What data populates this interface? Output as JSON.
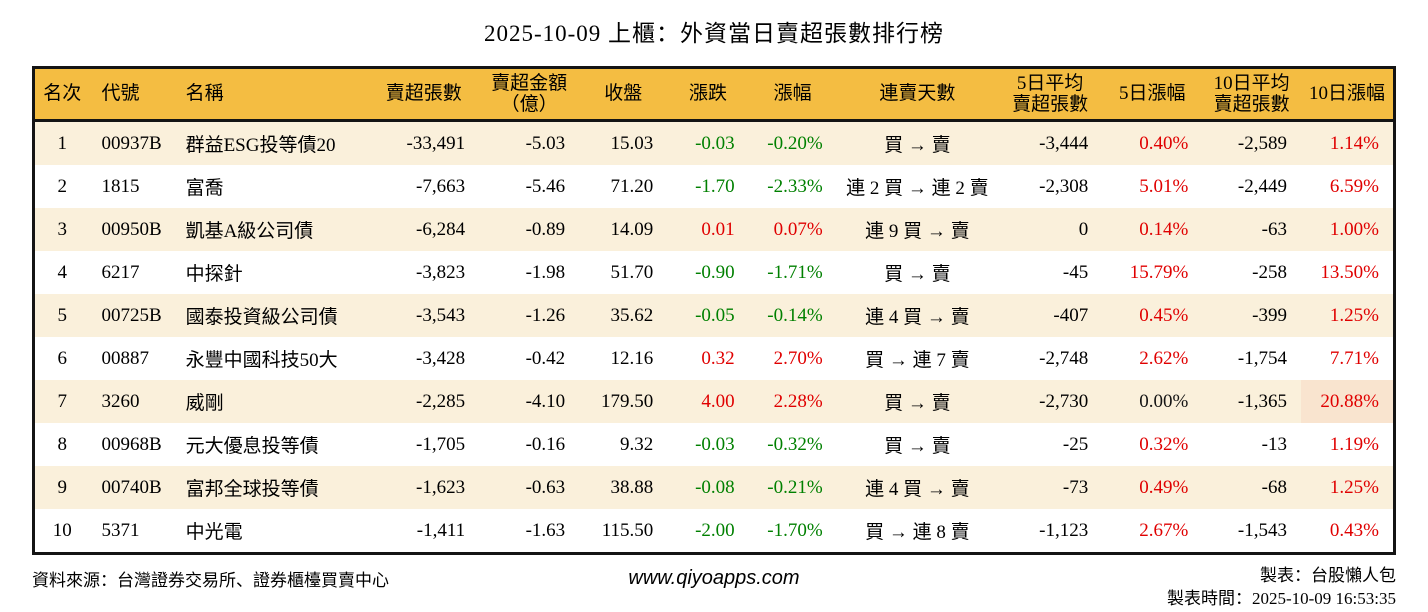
{
  "title": "2025-10-09 上櫃：外資當日賣超張數排行榜",
  "colors": {
    "header_bg": "#F4BD42",
    "row_band": "#FAF0DB",
    "up_red": "#E00000",
    "down_green": "#008000",
    "highlight": "#F9E4CF",
    "border": "#141414"
  },
  "footer": {
    "source": "資料來源：台灣證券交易所、證券櫃檯買賣中心",
    "website": "www.qiyoapps.com",
    "maker": "製表：台股懶人包",
    "generated_at": "製表時間：2025-10-09 16:53:35"
  },
  "chart_data": {
    "type": "table",
    "title": "2025-10-09 上櫃：外資當日賣超張數排行榜",
    "columns": [
      {
        "key": "rank",
        "label": "名次",
        "align": "center"
      },
      {
        "key": "code",
        "label": "代號",
        "align": "left"
      },
      {
        "key": "name",
        "label": "名稱",
        "align": "left"
      },
      {
        "key": "sell_volume",
        "label": "賣超張數",
        "align": "right"
      },
      {
        "key": "sell_amount",
        "label": "賣超金額\n（億）",
        "align": "right"
      },
      {
        "key": "close",
        "label": "收盤",
        "align": "right"
      },
      {
        "key": "change",
        "label": "漲跌",
        "align": "right"
      },
      {
        "key": "change_pct",
        "label": "漲幅",
        "align": "right"
      },
      {
        "key": "streak",
        "label": "連賣天數",
        "align": "center"
      },
      {
        "key": "avg5",
        "label": "5日平均\n賣超張數",
        "align": "right"
      },
      {
        "key": "pct5",
        "label": "5日漲幅",
        "align": "right"
      },
      {
        "key": "avg10",
        "label": "10日平均\n賣超張數",
        "align": "right"
      },
      {
        "key": "pct10",
        "label": "10日漲幅",
        "align": "right"
      }
    ],
    "rows": [
      {
        "rank": "1",
        "code": "00937B",
        "name": "群益ESG投等債20",
        "sell_volume": "-33,491",
        "sell_amount": "-5.03",
        "close": "15.03",
        "change": "-0.03",
        "change_pct": "-0.20%",
        "streak": "買 → 賣",
        "avg5": "-3,444",
        "pct5": "0.40%",
        "avg10": "-2,589",
        "pct10": "1.14%",
        "dir": {
          "change": "down",
          "change_pct": "down",
          "pct5": "up",
          "pct10": "up"
        }
      },
      {
        "rank": "2",
        "code": "1815",
        "name": "富喬",
        "sell_volume": "-7,663",
        "sell_amount": "-5.46",
        "close": "71.20",
        "change": "-1.70",
        "change_pct": "-2.33%",
        "streak": "連 2 買 → 連 2 賣",
        "avg5": "-2,308",
        "pct5": "5.01%",
        "avg10": "-2,449",
        "pct10": "6.59%",
        "dir": {
          "change": "down",
          "change_pct": "down",
          "pct5": "up",
          "pct10": "up"
        }
      },
      {
        "rank": "3",
        "code": "00950B",
        "name": "凱基A級公司債",
        "sell_volume": "-6,284",
        "sell_amount": "-0.89",
        "close": "14.09",
        "change": "0.01",
        "change_pct": "0.07%",
        "streak": "連 9 買 → 賣",
        "avg5": "0",
        "pct5": "0.14%",
        "avg10": "-63",
        "pct10": "1.00%",
        "dir": {
          "change": "up",
          "change_pct": "up",
          "pct5": "up",
          "pct10": "up"
        }
      },
      {
        "rank": "4",
        "code": "6217",
        "name": "中探針",
        "sell_volume": "-3,823",
        "sell_amount": "-1.98",
        "close": "51.70",
        "change": "-0.90",
        "change_pct": "-1.71%",
        "streak": "買 → 賣",
        "avg5": "-45",
        "pct5": "15.79%",
        "avg10": "-258",
        "pct10": "13.50%",
        "dir": {
          "change": "down",
          "change_pct": "down",
          "pct5": "up",
          "pct10": "up"
        }
      },
      {
        "rank": "5",
        "code": "00725B",
        "name": "國泰投資級公司債",
        "sell_volume": "-3,543",
        "sell_amount": "-1.26",
        "close": "35.62",
        "change": "-0.05",
        "change_pct": "-0.14%",
        "streak": "連 4 買 → 賣",
        "avg5": "-407",
        "pct5": "0.45%",
        "avg10": "-399",
        "pct10": "1.25%",
        "dir": {
          "change": "down",
          "change_pct": "down",
          "pct5": "up",
          "pct10": "up"
        }
      },
      {
        "rank": "6",
        "code": "00887",
        "name": "永豐中國科技50大",
        "sell_volume": "-3,428",
        "sell_amount": "-0.42",
        "close": "12.16",
        "change": "0.32",
        "change_pct": "2.70%",
        "streak": "買 → 連 7 賣",
        "avg5": "-2,748",
        "pct5": "2.62%",
        "avg10": "-1,754",
        "pct10": "7.71%",
        "dir": {
          "change": "up",
          "change_pct": "up",
          "pct5": "up",
          "pct10": "up"
        }
      },
      {
        "rank": "7",
        "code": "3260",
        "name": "威剛",
        "sell_volume": "-2,285",
        "sell_amount": "-4.10",
        "close": "179.50",
        "change": "4.00",
        "change_pct": "2.28%",
        "streak": "買 → 賣",
        "avg5": "-2,730",
        "pct5": "0.00%",
        "avg10": "-1,365",
        "pct10": "20.88%",
        "dir": {
          "change": "up",
          "change_pct": "up",
          "pct5": "flat",
          "pct10": "up"
        },
        "highlight": [
          "pct10"
        ]
      },
      {
        "rank": "8",
        "code": "00968B",
        "name": "元大優息投等債",
        "sell_volume": "-1,705",
        "sell_amount": "-0.16",
        "close": "9.32",
        "change": "-0.03",
        "change_pct": "-0.32%",
        "streak": "買 → 賣",
        "avg5": "-25",
        "pct5": "0.32%",
        "avg10": "-13",
        "pct10": "1.19%",
        "dir": {
          "change": "down",
          "change_pct": "down",
          "pct5": "up",
          "pct10": "up"
        }
      },
      {
        "rank": "9",
        "code": "00740B",
        "name": "富邦全球投等債",
        "sell_volume": "-1,623",
        "sell_amount": "-0.63",
        "close": "38.88",
        "change": "-0.08",
        "change_pct": "-0.21%",
        "streak": "連 4 買 → 賣",
        "avg5": "-73",
        "pct5": "0.49%",
        "avg10": "-68",
        "pct10": "1.25%",
        "dir": {
          "change": "down",
          "change_pct": "down",
          "pct5": "up",
          "pct10": "up"
        }
      },
      {
        "rank": "10",
        "code": "5371",
        "name": "中光電",
        "sell_volume": "-1,411",
        "sell_amount": "-1.63",
        "close": "115.50",
        "change": "-2.00",
        "change_pct": "-1.70%",
        "streak": "買 → 連 8 賣",
        "avg5": "-1,123",
        "pct5": "2.67%",
        "avg10": "-1,543",
        "pct10": "0.43%",
        "dir": {
          "change": "down",
          "change_pct": "down",
          "pct5": "up",
          "pct10": "up"
        }
      }
    ]
  }
}
